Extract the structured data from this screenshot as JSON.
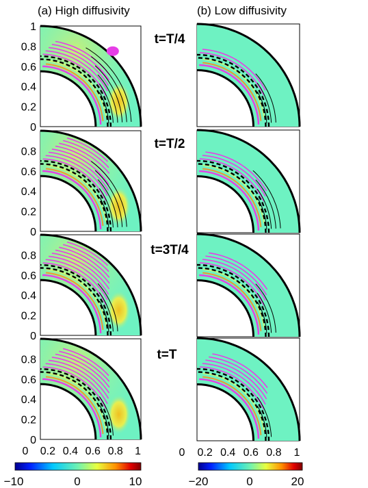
{
  "columns": [
    {
      "label": "(a) High diffusivity"
    },
    {
      "label": "(b) Low diffusivity"
    }
  ],
  "rows": [
    {
      "label": "t=T/4"
    },
    {
      "label": "t=T/2"
    },
    {
      "label": "t=3T/4"
    },
    {
      "label": "t=T"
    }
  ],
  "y_ticks": [
    "0",
    "0.2",
    "0.4",
    "0.6",
    "0.8",
    "1"
  ],
  "x_ticks": [
    "0",
    "0.2",
    "0.4",
    "0.6",
    "0.8",
    "1"
  ],
  "colorbars": [
    {
      "min_label": "−10",
      "mid_label": "0",
      "max_label": "10"
    },
    {
      "min_label": "−20",
      "mid_label": "0",
      "max_label": "20"
    }
  ],
  "colors": {
    "field": "#6ef2c2",
    "contour_magenta": "#e63ee6",
    "contour_black": "#000000",
    "dashed": "#000000"
  }
}
